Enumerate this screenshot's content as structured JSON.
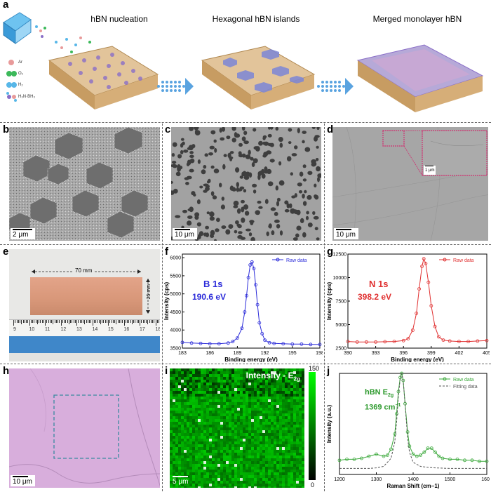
{
  "panel_labels": {
    "a": "a",
    "b": "b",
    "c": "c",
    "d": "d",
    "e": "e",
    "f": "f",
    "g": "g",
    "h": "h",
    "i": "i",
    "j": "j"
  },
  "panel_a": {
    "stages": [
      "hBN nucleation",
      "Hexagonal hBN islands",
      "Merged monolayer hBN"
    ],
    "legend": [
      "Ar",
      "O₂",
      "H₂",
      "H₃N·BH₃"
    ],
    "colors": {
      "ar": "#e89a9a",
      "o2": "#3cb95a",
      "h2": "#58b7e8",
      "nh3bh3": "#8a6fc8",
      "copper": "#d8b98a",
      "hbn": "#7c86d6",
      "arrow": "#5aa3e0"
    }
  },
  "scale_bars": {
    "b": "2 μm",
    "c": "10 μm",
    "d": "10 μm",
    "d_inset": "1 μm",
    "h": "10 μm",
    "i": "5 μm"
  },
  "panel_e": {
    "width_label": "70 mm",
    "height_label": "25 mm",
    "ruler_numbers": [
      "9",
      "10",
      "11",
      "12",
      "13",
      "14",
      "15",
      "16",
      "17",
      "18"
    ]
  },
  "panel_i": {
    "title": "Intensity - E",
    "title_sub": "2g",
    "colorbar_max": "150",
    "colorbar_min": "0"
  },
  "panel_j_text": {
    "label_main": "hBN E",
    "label_sub": "2g",
    "label_value": "1369 cm",
    "label_exp": "−1"
  },
  "chart_data": [
    {
      "id": "f",
      "type": "line",
      "title": "B 1s",
      "subtitle": "190.6 eV",
      "xlabel": "Binding energy (eV)",
      "ylabel": "Intensity (cps)",
      "xlim": [
        183,
        198
      ],
      "ylim": [
        3500,
        6100
      ],
      "xticks": [
        183,
        186,
        189,
        192,
        195,
        198
      ],
      "yticks": [
        3500,
        4000,
        4500,
        5000,
        5500,
        6000
      ],
      "series": [
        {
          "name": "Raw data",
          "color": "#2b2bd9",
          "x": [
            183,
            184,
            185,
            186,
            187,
            188,
            188.5,
            189,
            189.5,
            189.8,
            190,
            190.2,
            190.4,
            190.6,
            190.8,
            191,
            191.2,
            191.4,
            191.7,
            192,
            192.5,
            193,
            194,
            195,
            196,
            197,
            198
          ],
          "y": [
            3660,
            3640,
            3630,
            3620,
            3620,
            3640,
            3680,
            3780,
            4050,
            4500,
            4950,
            5450,
            5800,
            5880,
            5700,
            5250,
            4700,
            4200,
            3900,
            3720,
            3650,
            3630,
            3620,
            3610,
            3610,
            3600,
            3600
          ]
        }
      ]
    },
    {
      "id": "g",
      "type": "line",
      "title": "N 1s",
      "subtitle": "398.2 eV",
      "xlabel": "Binding energy (eV)",
      "ylabel": "Intensity (cps)",
      "xlim": [
        390,
        405
      ],
      "ylim": [
        2500,
        12500
      ],
      "xticks": [
        390,
        393,
        396,
        399,
        402,
        405
      ],
      "yticks": [
        2500,
        5000,
        7500,
        10000,
        12500
      ],
      "series": [
        {
          "name": "Raw data",
          "color": "#e03030",
          "x": [
            390,
            391,
            392,
            393,
            394,
            395,
            396,
            396.5,
            397,
            397.4,
            397.7,
            398,
            398.2,
            398.4,
            398.7,
            399,
            399.4,
            399.8,
            400.3,
            401,
            402,
            403,
            404,
            405
          ],
          "y": [
            3200,
            3150,
            3150,
            3150,
            3180,
            3200,
            3300,
            3500,
            4400,
            6200,
            8800,
            11200,
            12000,
            11500,
            9500,
            7000,
            4800,
            3700,
            3350,
            3250,
            3200,
            3200,
            3250,
            3300
          ]
        }
      ]
    },
    {
      "id": "j",
      "type": "line",
      "xlabel": "Raman Shift (cm−1)",
      "ylabel": "Intensity (a.u.)",
      "xlim": [
        1200,
        1600
      ],
      "xticks": [
        1200,
        1300,
        1400,
        1500,
        1600
      ],
      "ylim": [
        0,
        1
      ],
      "series": [
        {
          "name": "Raw data",
          "color": "#3aa83a",
          "x": [
            1200,
            1220,
            1240,
            1260,
            1280,
            1300,
            1320,
            1330,
            1340,
            1350,
            1355,
            1360,
            1365,
            1369,
            1373,
            1378,
            1385,
            1390,
            1400,
            1410,
            1420,
            1430,
            1440,
            1450,
            1460,
            1470,
            1480,
            1500,
            1520,
            1540,
            1560,
            1580,
            1600
          ],
          "y": [
            0.14,
            0.15,
            0.15,
            0.16,
            0.18,
            0.2,
            0.18,
            0.19,
            0.25,
            0.4,
            0.6,
            0.82,
            0.96,
            1.0,
            0.93,
            0.7,
            0.42,
            0.28,
            0.2,
            0.18,
            0.19,
            0.22,
            0.26,
            0.26,
            0.22,
            0.18,
            0.16,
            0.15,
            0.15,
            0.14,
            0.14,
            0.13,
            0.13
          ]
        },
        {
          "name": "Fitting data",
          "color": "#555555",
          "x": [
            1200,
            1240,
            1280,
            1300,
            1320,
            1340,
            1350,
            1355,
            1360,
            1365,
            1369,
            1373,
            1378,
            1385,
            1390,
            1400,
            1420,
            1440,
            1460,
            1500,
            1560,
            1600
          ],
          "y": [
            0.06,
            0.06,
            0.06,
            0.065,
            0.08,
            0.16,
            0.32,
            0.52,
            0.78,
            0.95,
            1.0,
            0.93,
            0.7,
            0.36,
            0.22,
            0.12,
            0.08,
            0.07,
            0.065,
            0.06,
            0.06,
            0.06
          ]
        }
      ]
    }
  ]
}
